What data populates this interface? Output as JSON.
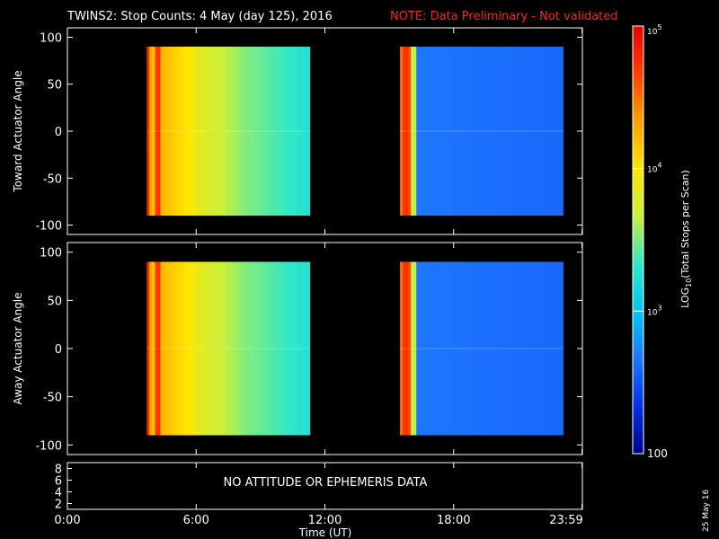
{
  "header": {
    "title": "TWINS2: Stop Counts:  4 May (day 125), 2016",
    "note": "NOTE: Data Preliminary - Not validated",
    "note_color": "#ff2020"
  },
  "footer": {
    "date_stamp": "25 May 16",
    "attitude_message": "NO ATTITUDE OR EPHEMERIS DATA"
  },
  "chart_data": [
    {
      "type": "heatmap",
      "panel": "top",
      "ylabel": "Toward Actuator Angle",
      "ylim": [
        -110,
        110
      ],
      "yticks": [
        100,
        50,
        0,
        -50,
        -100
      ],
      "xlim": [
        0,
        24
      ],
      "data_intervals_hours": [
        [
          3.7,
          11.3
        ],
        [
          15.5,
          23.1
        ]
      ],
      "angle_range": [
        -90,
        90
      ]
    },
    {
      "type": "heatmap",
      "panel": "middle",
      "ylabel": "Away Actuator Angle",
      "ylim": [
        -110,
        110
      ],
      "yticks": [
        100,
        50,
        0,
        -50,
        -100
      ],
      "xlim": [
        0,
        24
      ],
      "data_intervals_hours": [
        [
          3.7,
          11.3
        ],
        [
          15.5,
          23.1
        ]
      ],
      "angle_range": [
        -90,
        90
      ]
    },
    {
      "type": "line",
      "panel": "bottom",
      "yticks": [
        8,
        6,
        4,
        2
      ],
      "xlim": [
        0,
        24
      ],
      "xticks": [
        "0:00",
        "6:00",
        "12:00",
        "18:00",
        "23:59"
      ],
      "xtick_hours": [
        0,
        6,
        12,
        18,
        23.983
      ],
      "xlabel": "Time (UT)"
    }
  ],
  "colorbar": {
    "label": "LOG10(Total Stops per Scan)",
    "label_main": "LOG",
    "label_sub": "10",
    "label_rest": "(Total Stops per Scan)",
    "scale": "log",
    "range": [
      100,
      100000
    ],
    "ticks": [
      {
        "value": 100000,
        "base": "10",
        "exp": "5"
      },
      {
        "value": 10000,
        "base": "10",
        "exp": "4"
      },
      {
        "value": 1000,
        "base": "10",
        "exp": "3"
      },
      {
        "value": 100,
        "base": "100",
        "exp": ""
      }
    ],
    "colors": [
      "#00008c",
      "#0030e6",
      "#1e78ff",
      "#00c8f0",
      "#30e8c8",
      "#c8f03c",
      "#ffe600",
      "#ffa000",
      "#ff4000",
      "#e60000"
    ]
  }
}
